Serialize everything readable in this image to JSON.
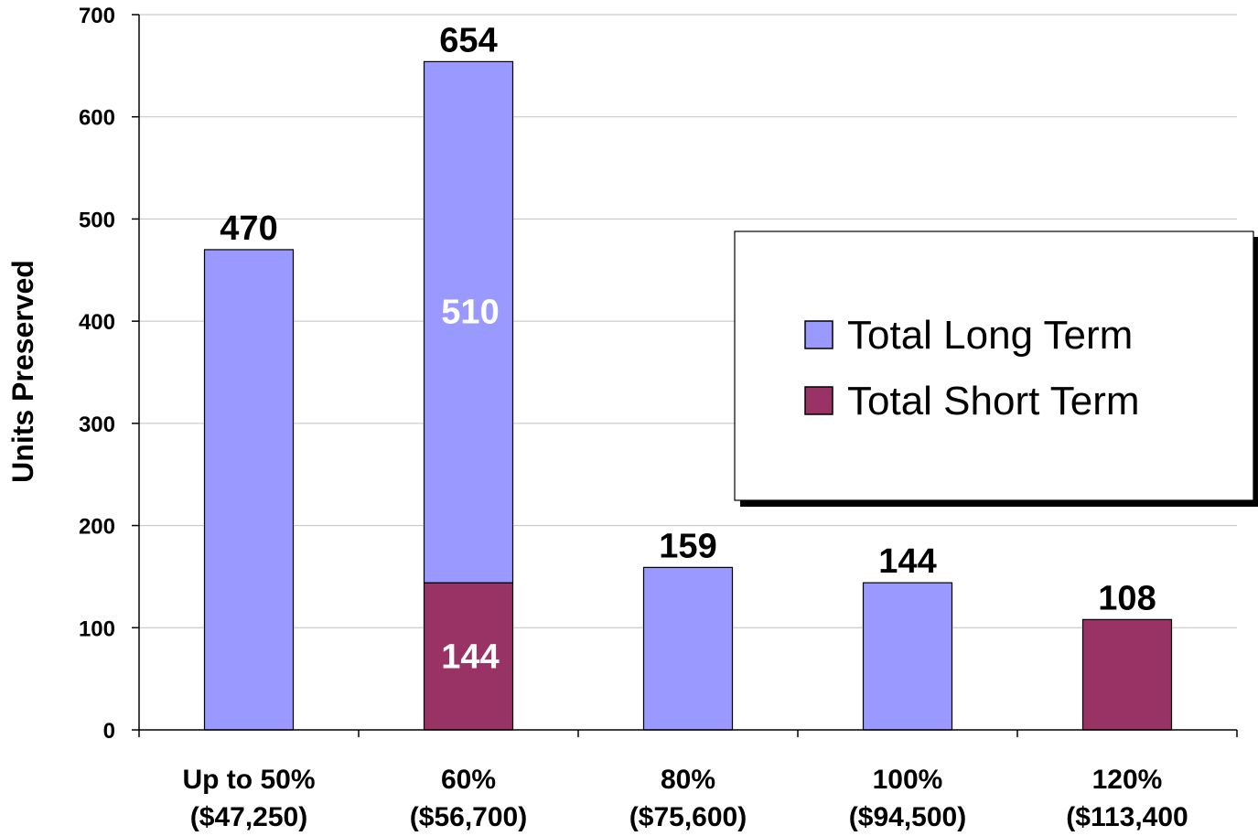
{
  "chart_data": {
    "type": "bar",
    "stacked": true,
    "ylabel": "Units Preserved",
    "xlabel": "",
    "title": "",
    "ylim": [
      0,
      700
    ],
    "yticks": [
      0,
      100,
      200,
      300,
      400,
      500,
      600,
      700
    ],
    "grid": true,
    "legend_position": "right",
    "categories": [
      [
        "Up to 50%",
        "($47,250)"
      ],
      [
        "60%",
        "($56,700)"
      ],
      [
        "80%",
        "($75,600)"
      ],
      [
        "100%",
        "($94,500)"
      ],
      [
        "120%",
        "($113,400"
      ]
    ],
    "series": [
      {
        "name": "Total Short Term",
        "color": "#993366",
        "values": [
          0,
          144,
          0,
          0,
          108
        ]
      },
      {
        "name": "Total Long Term",
        "color": "#9999ff",
        "values": [
          470,
          510,
          159,
          144,
          0
        ]
      }
    ],
    "legend_order": [
      "Total Long Term",
      "Total Short Term"
    ],
    "totals": [
      470,
      654,
      159,
      144,
      108
    ],
    "segment_labels": [
      {
        "category": 1,
        "series": "Total Long Term",
        "text": "510"
      },
      {
        "category": 1,
        "series": "Total Short Term",
        "text": "144"
      }
    ]
  }
}
